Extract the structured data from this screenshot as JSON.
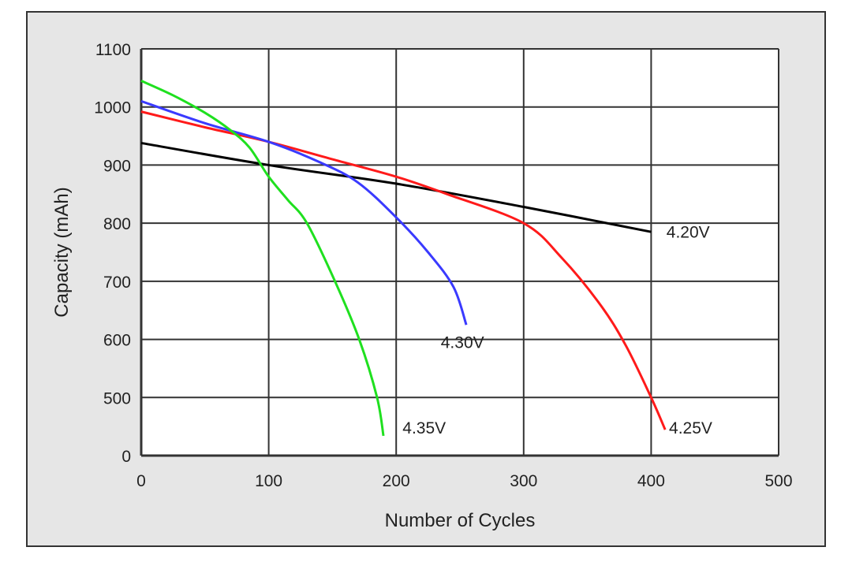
{
  "chart_data": {
    "type": "line",
    "title": "",
    "xlabel": "Number of Cycles",
    "ylabel": "Capacity (mAh)",
    "xlim": [
      0,
      500
    ],
    "x_ticks": [
      "0",
      "100",
      "200",
      "300",
      "400",
      "500"
    ],
    "y_ticks": [
      "0",
      "500",
      "600",
      "700",
      "800",
      "900",
      "1000",
      "1100"
    ],
    "y_tick_values": [
      0,
      500,
      600,
      700,
      800,
      900,
      1000,
      1100
    ],
    "y_axis_note": "broken axis: 0 to 500 spans one grid interval",
    "grid": true,
    "series": [
      {
        "name": "4.20V",
        "color": "#000000",
        "x": [
          0,
          100,
          200,
          300,
          400
        ],
        "y": [
          938,
          900,
          868,
          828,
          785
        ],
        "label_at": [
          412,
          775
        ]
      },
      {
        "name": "4.25V",
        "color": "#ff1a1a",
        "x": [
          0,
          50,
          100,
          150,
          200,
          240,
          300,
          330,
          360,
          380,
          400,
          411
        ],
        "y": [
          992,
          965,
          940,
          910,
          880,
          850,
          800,
          740,
          660,
          590,
          500,
          223
        ],
        "label_at": [
          414,
          190
        ]
      },
      {
        "name": "4.30V",
        "color": "#3a3aff",
        "x": [
          0,
          50,
          100,
          140,
          170,
          200,
          225,
          245,
          255
        ],
        "y": [
          1010,
          972,
          940,
          905,
          870,
          810,
          750,
          690,
          625
        ],
        "label_at": [
          235,
          585
        ]
      },
      {
        "name": "4.35V",
        "color": "#1fe01f",
        "x": [
          0,
          25,
          50,
          70,
          85,
          100,
          115,
          130,
          152,
          171,
          185,
          190
        ],
        "y": [
          1045,
          1020,
          990,
          960,
          930,
          880,
          840,
          800,
          700,
          600,
          500,
          170
        ],
        "label_at": [
          205,
          190
        ]
      }
    ]
  }
}
